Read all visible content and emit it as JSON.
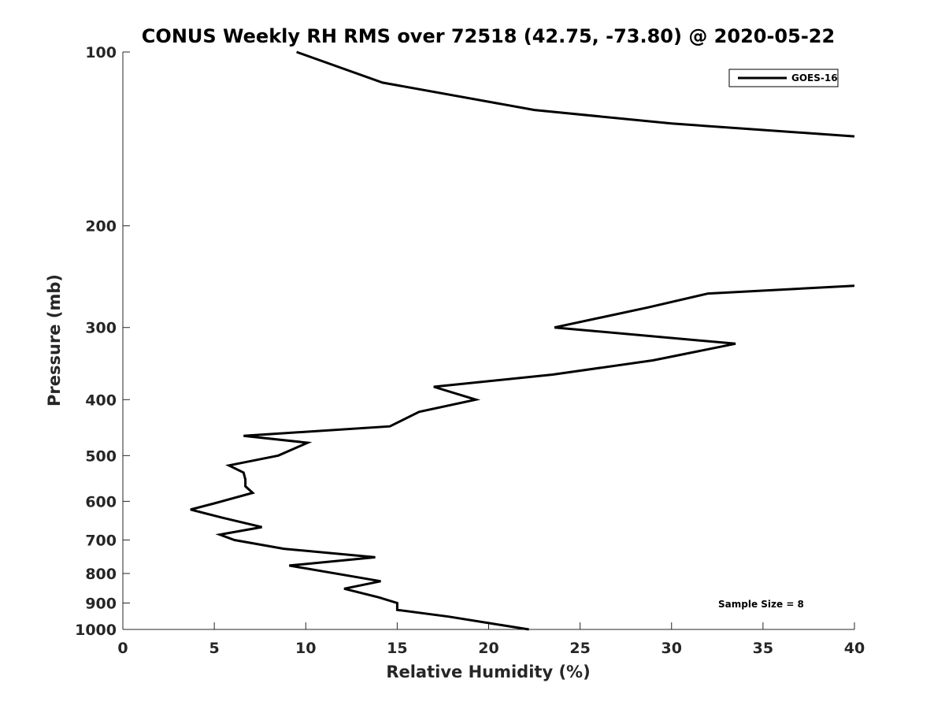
{
  "chart_data": {
    "type": "line",
    "title": "CONUS Weekly RH RMS over 72518 (42.75, -73.80) @ 2020-05-22",
    "xlabel": "Relative Humidity (%)",
    "ylabel": "Pressure (mb)",
    "xlim": [
      0,
      40
    ],
    "ylim": [
      1000,
      100
    ],
    "y_scale": "log",
    "y_reversed": true,
    "grid": false,
    "x_ticks": [
      0,
      5,
      10,
      15,
      20,
      25,
      30,
      35,
      40
    ],
    "y_ticks": [
      100,
      200,
      300,
      400,
      500,
      600,
      700,
      800,
      900,
      1000
    ],
    "legend_position": "top-right",
    "annotation": "Sample Size = 8",
    "series": [
      {
        "name": "GOES-16",
        "color": "#000000",
        "points": [
          [
            22.2,
            1000
          ],
          [
            20.0,
            975
          ],
          [
            17.8,
            950
          ],
          [
            15.0,
            925
          ],
          [
            15.0,
            900
          ],
          [
            14.0,
            880
          ],
          [
            12.1,
            850
          ],
          [
            14.1,
            825
          ],
          [
            9.1,
            775
          ],
          [
            13.8,
            750
          ],
          [
            8.8,
            725
          ],
          [
            6.1,
            700
          ],
          [
            5.3,
            685
          ],
          [
            7.6,
            665
          ],
          [
            5.4,
            640
          ],
          [
            3.7,
            620
          ],
          [
            5.0,
            605
          ],
          [
            7.1,
            580
          ],
          [
            6.7,
            565
          ],
          [
            6.7,
            550
          ],
          [
            6.6,
            535
          ],
          [
            5.8,
            520
          ],
          [
            8.5,
            500
          ],
          [
            10.1,
            475
          ],
          [
            6.6,
            462
          ],
          [
            14.6,
            445
          ],
          [
            16.2,
            420
          ],
          [
            19.3,
            400
          ],
          [
            17.0,
            380
          ],
          [
            23.5,
            362
          ],
          [
            29.0,
            342
          ],
          [
            33.5,
            320
          ],
          [
            23.6,
            300
          ],
          [
            28.7,
            277
          ],
          [
            32.0,
            262
          ],
          [
            40.0,
            254
          ]
        ],
        "points_upper": [
          [
            9.5,
            100
          ],
          [
            14.2,
            113
          ],
          [
            22.5,
            126
          ],
          [
            30.0,
            133
          ],
          [
            40.0,
            140
          ]
        ]
      }
    ]
  }
}
